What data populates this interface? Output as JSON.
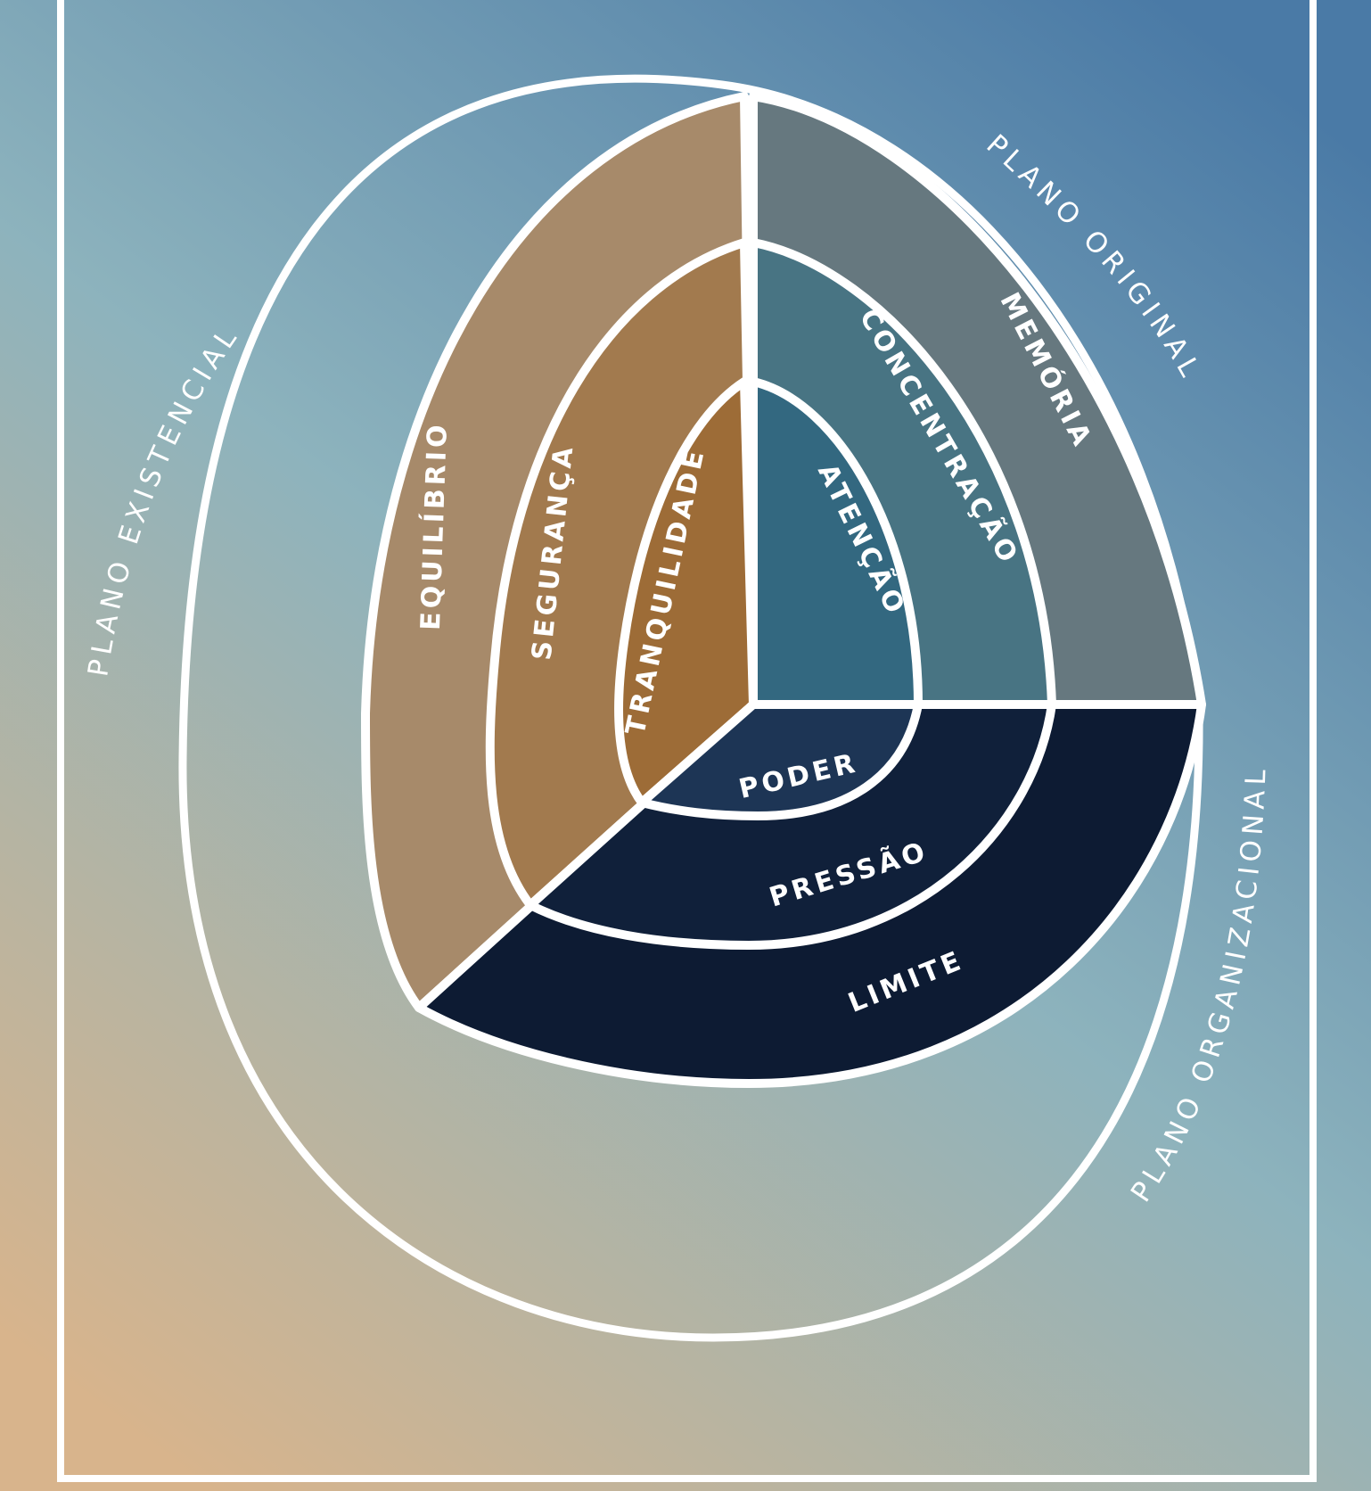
{
  "diagram": {
    "planes": {
      "existencial": "PLANO EXISTENCIAL",
      "original": "PLANO ORIGINAL",
      "organizacional": "PLANO ORGANIZACIONAL"
    },
    "segments": {
      "equilibrio": "EQUILÍBRIO",
      "seguranca": "SEGURANÇA",
      "tranquilidade": "TRANQUILIDADE",
      "memoria": "MEMÓRIA",
      "concentracao": "CONCENTRAÇÃO",
      "atencao": "ATENÇÃO",
      "limite": "LIMITE",
      "pressao": "PRESSÃO",
      "poder": "PODER"
    },
    "colors": {
      "background_top": "#4a7aa6",
      "background_mid": "#8db3bd",
      "background_bottom": "#d8b48c",
      "equilibrio": "#a78a6a",
      "seguranca": "#a27a4e",
      "tranquilidade": "#9d6c37",
      "memoria": "#66787f",
      "concentracao": "#487483",
      "atencao": "#336880",
      "limite": "#0d1b33",
      "pressao": "#10203a",
      "poder": "#1d3555",
      "lines": "#ffffff"
    }
  }
}
